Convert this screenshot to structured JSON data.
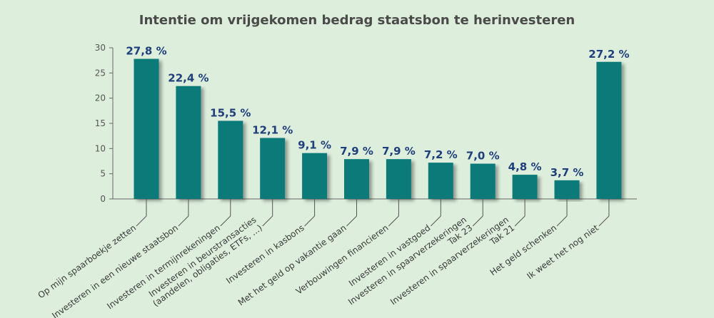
{
  "chart_data": {
    "type": "bar",
    "title": "Intentie om vrijgekomen bedrag staatsbon te herinvesteren",
    "xlabel": "",
    "ylabel": "",
    "ylim": [
      0,
      30
    ],
    "yticks": [
      0,
      5,
      10,
      15,
      20,
      25,
      30
    ],
    "categories": [
      [
        "Op mijn spaarboekje zetten"
      ],
      [
        "Investeren in een nieuwe staatsbon"
      ],
      [
        "Investeren in termijnrekeningen"
      ],
      [
        "Investeren in beurstransacties",
        "(aandelen, obligaties, ETFs, ...)"
      ],
      [
        "Investeren in kasbons"
      ],
      [
        "Met het geld op vakantie gaan"
      ],
      [
        "Verbouwingen financieren"
      ],
      [
        "Investeren in vastgoed"
      ],
      [
        "Investeren in spaarverzekeringen",
        "Tak 23"
      ],
      [
        "Investeren in spaarverzekeringen",
        "Tak 21"
      ],
      [
        "Het geld schenken"
      ],
      [
        "Ik weet het nog niet"
      ]
    ],
    "values": [
      27.8,
      22.4,
      15.5,
      12.1,
      9.1,
      7.9,
      7.9,
      7.2,
      7.0,
      4.8,
      3.7,
      27.2
    ],
    "value_labels": [
      "27,8 %",
      "22,4 %",
      "15,5 %",
      "12,1 %",
      "9,1 %",
      "7,9 %",
      "7,9 %",
      "7,2 %",
      "7,0 %",
      "4,8 %",
      "3,7 %",
      "27,2 %"
    ],
    "bar_color": "#0a7a7a",
    "label_color": "#1f3f7a",
    "background": "#ddeedd",
    "grid": false
  }
}
